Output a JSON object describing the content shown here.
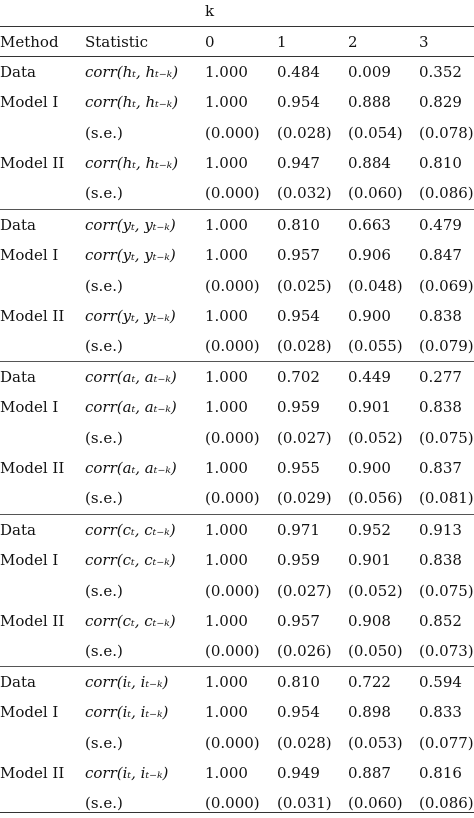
{
  "header": {
    "k_label": "k",
    "columns": [
      "Method",
      "Statistic",
      "0",
      "1",
      "2",
      "3"
    ]
  },
  "blocks": [
    {
      "rows": [
        {
          "method": "Data",
          "statistic": "corr(h_t, h_{t-k})",
          "statistic_display": "corr(hₜ, hₜ₋ₖ)",
          "values": [
            "1.000",
            "0.484",
            "0.009",
            "0.352"
          ]
        },
        {
          "method": "Model I",
          "statistic": "corr(h_t, h_{t-k})",
          "statistic_display": "corr(hₜ, hₜ₋ₖ)",
          "values": [
            "1.000",
            "0.954",
            "0.888",
            "0.829"
          ]
        },
        {
          "method": "",
          "statistic": "(s.e.)",
          "statistic_display": "(s.e.)",
          "values": [
            "(0.000)",
            "(0.028)",
            "(0.054)",
            "(0.078)"
          ]
        },
        {
          "method": "Model II",
          "statistic": "corr(h_t, h_{t-k})",
          "statistic_display": "corr(hₜ, hₜ₋ₖ)",
          "values": [
            "1.000",
            "0.947",
            "0.884",
            "0.810"
          ]
        },
        {
          "method": "",
          "statistic": "(s.e.)",
          "statistic_display": "(s.e.)",
          "values": [
            "(0.000)",
            "(0.032)",
            "(0.060)",
            "(0.086)"
          ]
        }
      ]
    },
    {
      "rows": [
        {
          "method": "Data",
          "statistic": "corr(y_t, y_{t-k})",
          "statistic_display": "corr(yₜ, yₜ₋ₖ)",
          "values": [
            "1.000",
            "0.810",
            "0.663",
            "0.479"
          ]
        },
        {
          "method": "Model I",
          "statistic": "corr(y_t, y_{t-k})",
          "statistic_display": "corr(yₜ, yₜ₋ₖ)",
          "values": [
            "1.000",
            "0.957",
            "0.906",
            "0.847"
          ]
        },
        {
          "method": "",
          "statistic": "(s.e.)",
          "statistic_display": "(s.e.)",
          "values": [
            "(0.000)",
            "(0.025)",
            "(0.048)",
            "(0.069)"
          ]
        },
        {
          "method": "Model II",
          "statistic": "corr(y_t, y_{t-k})",
          "statistic_display": "corr(yₜ, yₜ₋ₖ)",
          "values": [
            "1.000",
            "0.954",
            "0.900",
            "0.838"
          ]
        },
        {
          "method": "",
          "statistic": "(s.e.)",
          "statistic_display": "(s.e.)",
          "values": [
            "(0.000)",
            "(0.028)",
            "(0.055)",
            "(0.079)"
          ]
        }
      ]
    },
    {
      "rows": [
        {
          "method": "Data",
          "statistic": "corr(a_t, a_{t-k})",
          "statistic_display": "corr(aₜ, aₜ₋ₖ)",
          "values": [
            "1.000",
            "0.702",
            "0.449",
            "0.277"
          ]
        },
        {
          "method": "Model I",
          "statistic": "corr(a_t, a_{t-k})",
          "statistic_display": "corr(aₜ, aₜ₋ₖ)",
          "values": [
            "1.000",
            "0.959",
            "0.901",
            "0.838"
          ]
        },
        {
          "method": "",
          "statistic": "(s.e.)",
          "statistic_display": "(s.e.)",
          "values": [
            "(0.000)",
            "(0.027)",
            "(0.052)",
            "(0.075)"
          ]
        },
        {
          "method": "Model II",
          "statistic": "corr(a_t, a_{t-k})",
          "statistic_display": "corr(aₜ, aₜ₋ₖ)",
          "values": [
            "1.000",
            "0.955",
            "0.900",
            "0.837"
          ]
        },
        {
          "method": "",
          "statistic": "(s.e.)",
          "statistic_display": "(s.e.)",
          "values": [
            "(0.000)",
            "(0.029)",
            "(0.056)",
            "(0.081)"
          ]
        }
      ]
    },
    {
      "rows": [
        {
          "method": "Data",
          "statistic": "corr(c_t, c_{t-k})",
          "statistic_display": "corr(cₜ, cₜ₋ₖ)",
          "values": [
            "1.000",
            "0.971",
            "0.952",
            "0.913"
          ]
        },
        {
          "method": "Model I",
          "statistic": "corr(c_t, c_{t-k})",
          "statistic_display": "corr(cₜ, cₜ₋ₖ)",
          "values": [
            "1.000",
            "0.959",
            "0.901",
            "0.838"
          ]
        },
        {
          "method": "",
          "statistic": "(s.e.)",
          "statistic_display": "(s.e.)",
          "values": [
            "(0.000)",
            "(0.027)",
            "(0.052)",
            "(0.075)"
          ]
        },
        {
          "method": "Model II",
          "statistic": "corr(c_t, c_{t-k})",
          "statistic_display": "corr(cₜ, cₜ₋ₖ)",
          "values": [
            "1.000",
            "0.957",
            "0.908",
            "0.852"
          ]
        },
        {
          "method": "",
          "statistic": "(s.e.)",
          "statistic_display": "(s.e.)",
          "values": [
            "(0.000)",
            "(0.026)",
            "(0.050)",
            "(0.073)"
          ]
        }
      ]
    },
    {
      "rows": [
        {
          "method": "Data",
          "statistic": "corr(i_t, i_{t-k})",
          "statistic_display": "corr(iₜ, iₜ₋ₖ)",
          "values": [
            "1.000",
            "0.810",
            "0.722",
            "0.594"
          ]
        },
        {
          "method": "Model I",
          "statistic": "corr(i_t, i_{t-k})",
          "statistic_display": "corr(iₜ, iₜ₋ₖ)",
          "values": [
            "1.000",
            "0.954",
            "0.898",
            "0.833"
          ]
        },
        {
          "method": "",
          "statistic": "(s.e.)",
          "statistic_display": "(s.e.)",
          "values": [
            "(0.000)",
            "(0.028)",
            "(0.053)",
            "(0.077)"
          ]
        },
        {
          "method": "Model II",
          "statistic": "corr(i_t, i_{t-k})",
          "statistic_display": "corr(iₜ, iₜ₋ₖ)",
          "values": [
            "1.000",
            "0.949",
            "0.887",
            "0.816"
          ]
        },
        {
          "method": "",
          "statistic": "(s.e.)",
          "statistic_display": "(s.e.)",
          "values": [
            "(0.000)",
            "(0.031)",
            "(0.060)",
            "(0.086)"
          ]
        }
      ]
    }
  ]
}
